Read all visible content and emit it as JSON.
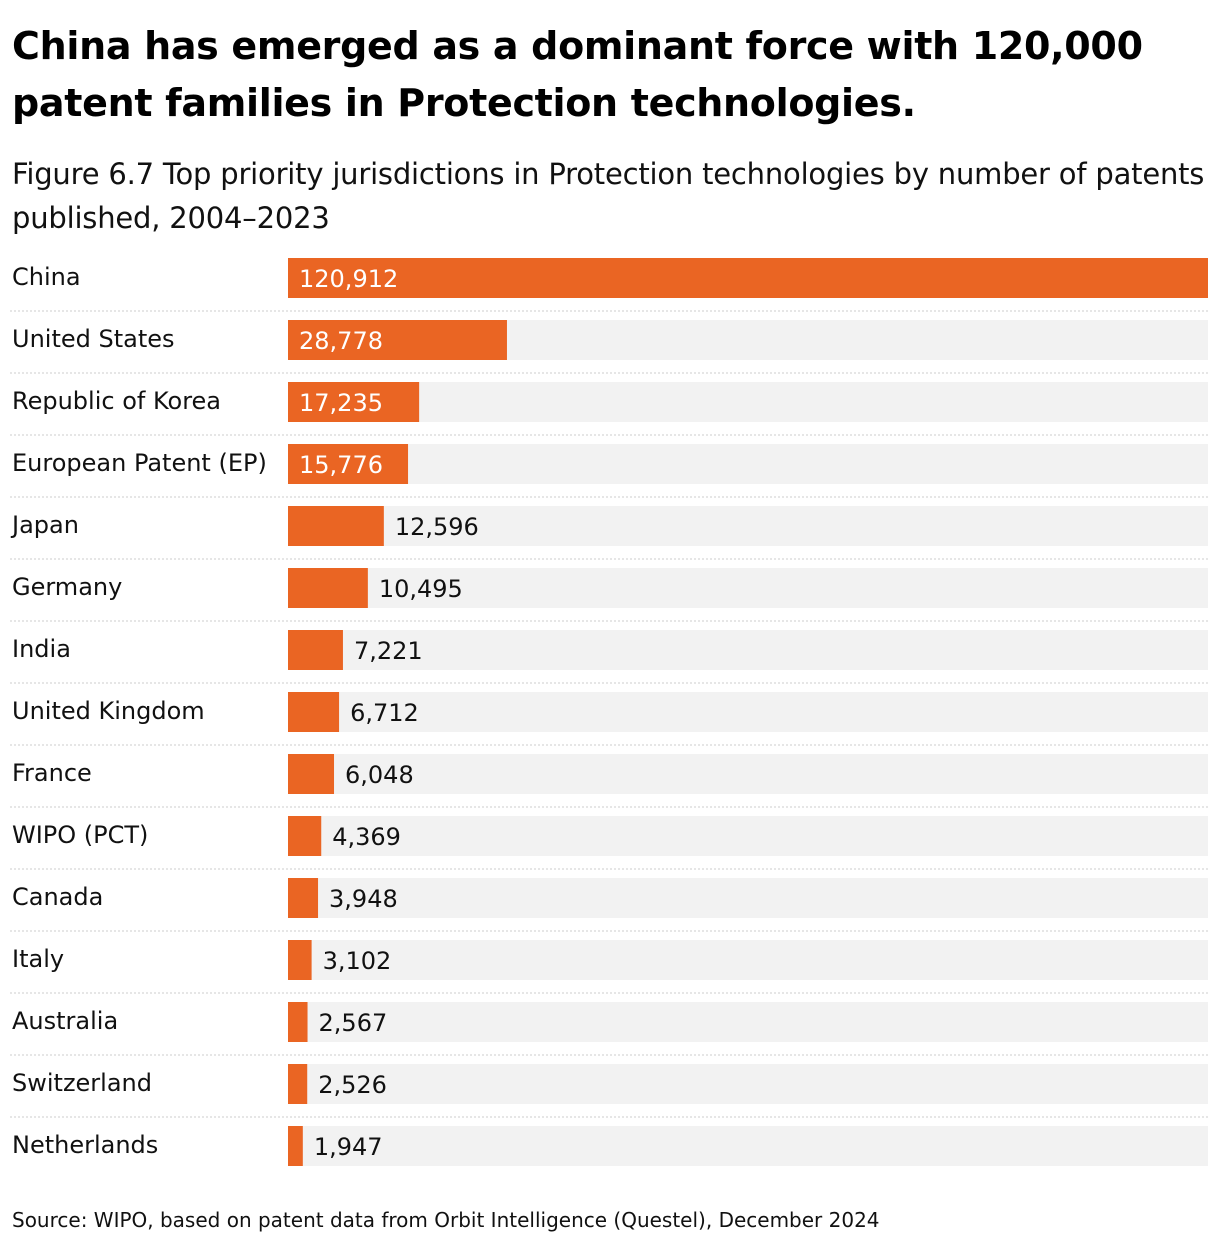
{
  "header": {
    "title": "China has emerged as a dominant force with 120,000 patent families in Protection technologies.",
    "subtitle": "Figure 6.7 Top priority jurisdictions in Protection technologies by number of patents published, 2004–2023"
  },
  "footer": {
    "source": "Source: WIPO, based on patent data from Orbit Intelligence (Questel), December 2024"
  },
  "colors": {
    "bar": "#ea6523",
    "track": "#f2f2f2",
    "separator": "#cccccc",
    "label_inside": "#ffffff",
    "label_outside": "#111111"
  },
  "chart_data": {
    "type": "bar",
    "orientation": "horizontal",
    "title": "Figure 6.7 Top priority jurisdictions in Protection technologies by number of patents published, 2004–2023",
    "xlabel": "",
    "ylabel": "",
    "xlim": [
      0,
      120912
    ],
    "categories": [
      "China",
      "United States",
      "Republic of Korea",
      "European Patent (EP)",
      "Japan",
      "Germany",
      "India",
      "United Kingdom",
      "France",
      "WIPO (PCT)",
      "Canada",
      "Italy",
      "Australia",
      "Switzerland",
      "Netherlands"
    ],
    "values": [
      120912,
      28778,
      17235,
      15776,
      12596,
      10495,
      7221,
      6712,
      6048,
      4369,
      3948,
      3102,
      2567,
      2526,
      1947
    ],
    "value_labels": [
      "120,912",
      "28,778",
      "17,235",
      "15,776",
      "12,596",
      "10,495",
      "7,221",
      "6,712",
      "6,048",
      "4,369",
      "3,948",
      "3,102",
      "2,567",
      "2,526",
      "1,947"
    ]
  }
}
